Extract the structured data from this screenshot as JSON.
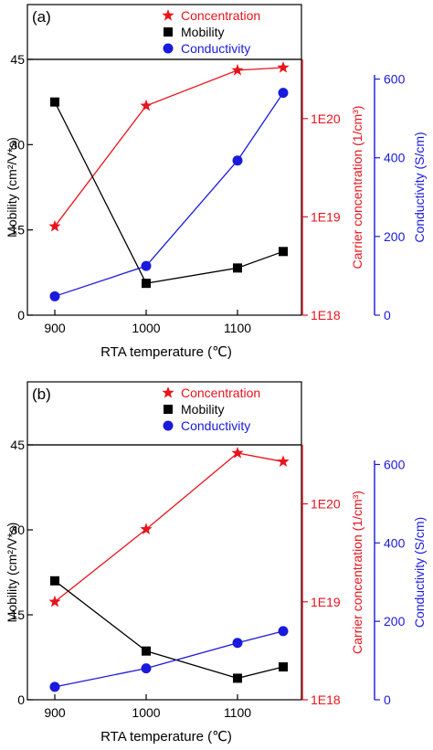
{
  "chart_data": [
    {
      "type": "line",
      "panel_label": "(a)",
      "x": [
        900,
        1000,
        1100,
        1150
      ],
      "xlabel": "RTA temperature (℃)",
      "xticks": [
        "900",
        "1000",
        "1100"
      ],
      "xtick_values": [
        900,
        1000,
        1100
      ],
      "xlim": [
        870,
        1170
      ],
      "grid": false,
      "legend": {
        "placement": "top-right",
        "entries": [
          "Concentration",
          "Mobility",
          "Conductivity"
        ]
      },
      "axes": {
        "left": {
          "label": "Mobility (cm²/V*s)",
          "ylim": [
            0,
            45
          ],
          "ticks": [
            "0",
            "15",
            "30",
            "45"
          ],
          "tick_values": [
            0,
            15,
            30,
            45
          ],
          "color": "#000000",
          "scale": "linear"
        },
        "right1": {
          "label": "Carrier concentration (1/cm³)",
          "ylim": [
            1e+18,
            4e+20
          ],
          "ticks": [
            "1E18",
            "1E19",
            "1E20"
          ],
          "tick_values": [
            1e+18,
            1e+19,
            1e+20
          ],
          "color": "#e8141c",
          "scale": "log"
        },
        "right2": {
          "label": "Conductivity (S/cm)",
          "ylim": [
            0,
            650
          ],
          "ticks": [
            "0",
            "200",
            "400",
            "600"
          ],
          "tick_values": [
            0,
            200,
            400,
            600
          ],
          "color": "#1a1adc",
          "scale": "linear"
        }
      },
      "series": [
        {
          "name": "Concentration",
          "axis": "right1",
          "marker": "star",
          "color": "#e8141c",
          "values": [
            8e+18,
            1.35e+20,
            3.1e+20,
            3.3e+20
          ]
        },
        {
          "name": "Mobility",
          "axis": "left",
          "marker": "square",
          "color": "#000000",
          "values": [
            37.5,
            5.6,
            8.3,
            11.2
          ]
        },
        {
          "name": "Conductivity",
          "axis": "right2",
          "marker": "circle",
          "color": "#1a1adc",
          "values": [
            48,
            125,
            393,
            565
          ]
        }
      ]
    },
    {
      "type": "line",
      "panel_label": "(b)",
      "x": [
        900,
        1000,
        1100,
        1150
      ],
      "xlabel": "RTA temperature (℃)",
      "xticks": [
        "900",
        "1000",
        "1100"
      ],
      "xtick_values": [
        900,
        1000,
        1100
      ],
      "xlim": [
        870,
        1170
      ],
      "grid": false,
      "legend": {
        "placement": "top-right",
        "entries": [
          "Concentration",
          "Mobility",
          "Conductivity"
        ]
      },
      "axes": {
        "left": {
          "label": "Mobility (cm²/V*s)",
          "ylim": [
            0,
            45
          ],
          "ticks": [
            "0",
            "15",
            "30",
            "45"
          ],
          "tick_values": [
            0,
            15,
            30,
            45
          ],
          "color": "#000000",
          "scale": "linear"
        },
        "right1": {
          "label": "Carrier concentration (1/cm³)",
          "ylim": [
            1e+18,
            4e+20
          ],
          "ticks": [
            "1E18",
            "1E19",
            "1E20"
          ],
          "tick_values": [
            1e+18,
            1e+19,
            1e+20
          ],
          "color": "#e8141c",
          "scale": "log"
        },
        "right2": {
          "label": "Conductivity (S/cm)",
          "ylim": [
            0,
            650
          ],
          "ticks": [
            "0",
            "200",
            "400",
            "600"
          ],
          "tick_values": [
            0,
            200,
            400,
            600
          ],
          "color": "#1a1adc",
          "scale": "linear"
        }
      },
      "series": [
        {
          "name": "Concentration",
          "axis": "right1",
          "marker": "star",
          "color": "#e8141c",
          "values": [
            1e+19,
            5.5e+19,
            3.3e+20,
            2.7e+20
          ]
        },
        {
          "name": "Mobility",
          "axis": "left",
          "marker": "square",
          "color": "#000000",
          "values": [
            21.0,
            8.6,
            3.8,
            5.8
          ]
        },
        {
          "name": "Conductivity",
          "axis": "right2",
          "marker": "circle",
          "color": "#1a1adc",
          "values": [
            33,
            80,
            145,
            175
          ]
        }
      ]
    }
  ]
}
